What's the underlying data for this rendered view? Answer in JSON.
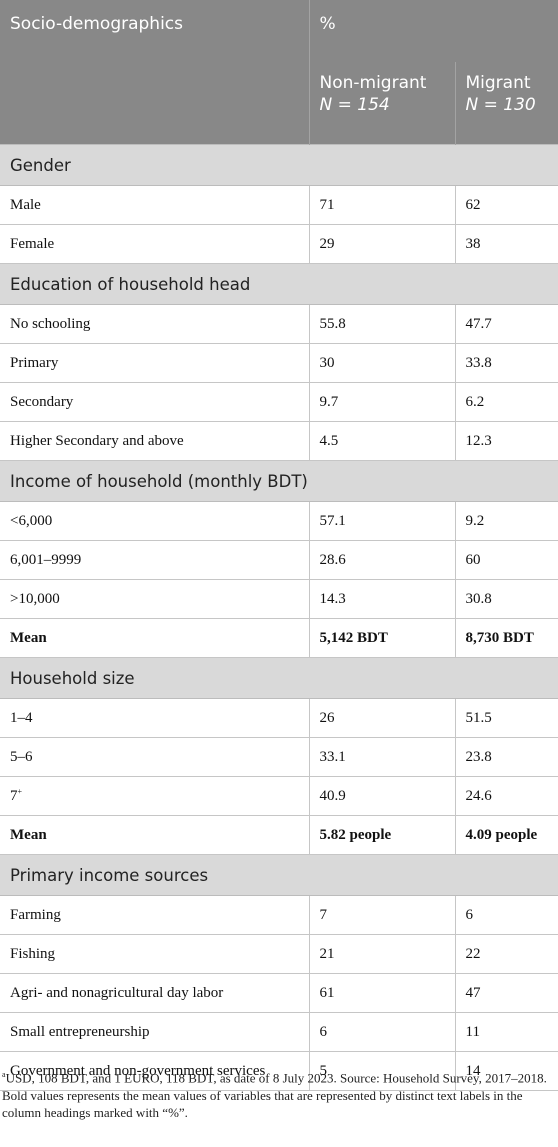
{
  "header": {
    "col1": "Socio-demographics",
    "col_group": "%",
    "nonmigrant_label": "Non-migrant",
    "nonmigrant_n": "N = 154",
    "migrant_label": "Migrant",
    "migrant_n": "N = 130"
  },
  "sections": [
    {
      "title": "Gender",
      "rows": [
        {
          "label": "Male",
          "nonmigrant": "71",
          "migrant": "62"
        },
        {
          "label": "Female",
          "nonmigrant": "29",
          "migrant": "38"
        }
      ]
    },
    {
      "title": "Education of household head",
      "rows": [
        {
          "label": "No schooling",
          "nonmigrant": "55.8",
          "migrant": "47.7"
        },
        {
          "label": "Primary",
          "nonmigrant": "30",
          "migrant": "33.8"
        },
        {
          "label": "Secondary",
          "nonmigrant": "9.7",
          "migrant": "6.2"
        },
        {
          "label": "Higher Secondary and above",
          "nonmigrant": "4.5",
          "migrant": "12.3"
        }
      ]
    },
    {
      "title": "Income of household (monthly BDT)",
      "rows": [
        {
          "label": "<6,000",
          "nonmigrant": "57.1",
          "migrant": "9.2"
        },
        {
          "label": "6,001–9999",
          "nonmigrant": "28.6",
          "migrant": "60"
        },
        {
          "label": ">10,000",
          "nonmigrant": "14.3",
          "migrant": "30.8"
        },
        {
          "label": "Mean",
          "nonmigrant": "5,142 BDT",
          "migrant": "8,730 BDT",
          "bold": true
        }
      ]
    },
    {
      "title": "Household size",
      "rows": [
        {
          "label": "1–4",
          "nonmigrant": "26",
          "migrant": "51.5"
        },
        {
          "label": "5–6",
          "nonmigrant": "33.1",
          "migrant": "23.8"
        },
        {
          "label": "7",
          "label_sup": "+",
          "nonmigrant": "40.9",
          "migrant": "24.6"
        },
        {
          "label": "Mean",
          "nonmigrant": "5.82 people",
          "migrant": "4.09 people",
          "bold": true
        }
      ]
    },
    {
      "title": "Primary income sources",
      "rows": [
        {
          "label": "Farming",
          "nonmigrant": "7",
          "migrant": "6"
        },
        {
          "label": "Fishing",
          "nonmigrant": "21",
          "migrant": "22"
        },
        {
          "label": "Agri- and nonagricultural day labor",
          "nonmigrant": "61",
          "migrant": "47"
        },
        {
          "label": "Small entrepreneurship",
          "nonmigrant": "6",
          "migrant": "11"
        },
        {
          "label": "Government and non-government services",
          "nonmigrant": "5",
          "migrant": "14"
        }
      ]
    }
  ],
  "footnotes": {
    "marker": "a",
    "note1": "USD, 108 BDT, and 1 EURO, 118 BDT, as date of 8 July 2023. Source: Household Survey, 2017–2018.",
    "note2": "Bold values represents the mean values of variables that are represented by distinct text labels in the column headings marked with “%”."
  }
}
